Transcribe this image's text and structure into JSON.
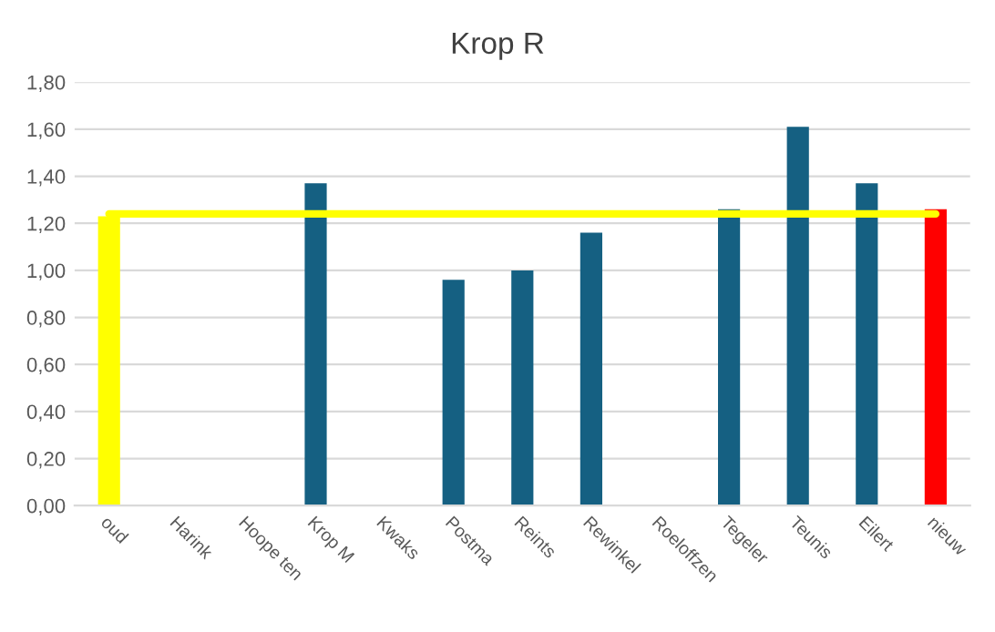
{
  "chart_data": {
    "type": "bar",
    "title": "Krop R",
    "categories": [
      "oud",
      "Harink",
      "Hoope ten",
      "Krop M",
      "Kwaks",
      "Postma",
      "Reints",
      "Rewinkel",
      "Roeloffzen",
      "Tegeler",
      "Teunis",
      "Eilert",
      "nieuw"
    ],
    "series": [
      {
        "values": [
          1.23,
          null,
          null,
          1.37,
          null,
          0.96,
          1.0,
          1.16,
          null,
          1.26,
          1.61,
          1.37,
          1.26
        ],
        "colors": [
          "#ffff00",
          "#156082",
          "#156082",
          "#156082",
          "#156082",
          "#156082",
          "#156082",
          "#156082",
          "#156082",
          "#156082",
          "#156082",
          "#156082",
          "#ff0000"
        ]
      },
      {
        "type": "line",
        "color": "#ffff00",
        "values": [
          1.24,
          1.24,
          1.24,
          1.24,
          1.24,
          1.24,
          1.24,
          1.24,
          1.24,
          1.24,
          1.24,
          1.24,
          1.24
        ]
      }
    ],
    "ylim": [
      0,
      1.8
    ],
    "yticks": [
      {
        "value": 0,
        "label": "0,00"
      },
      {
        "value": 0.2,
        "label": "0,20"
      },
      {
        "value": 0.4,
        "label": "0,40"
      },
      {
        "value": 0.6,
        "label": "0,60"
      },
      {
        "value": 0.8,
        "label": "0,80"
      },
      {
        "value": 1.0,
        "label": "1,00"
      },
      {
        "value": 1.2,
        "label": "1,20"
      },
      {
        "value": 1.4,
        "label": "1,40"
      },
      {
        "value": 1.6,
        "label": "1,60"
      },
      {
        "value": 1.8,
        "label": "1,80"
      }
    ],
    "grid": "y",
    "legend": false
  }
}
